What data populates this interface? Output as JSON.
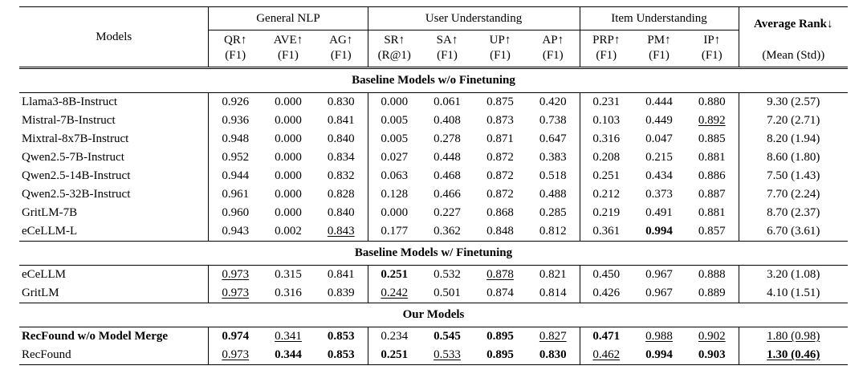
{
  "table": {
    "header": {
      "models_label": "Models",
      "groups": [
        {
          "label": "General NLP",
          "metrics": [
            {
              "name": "QR↑",
              "sub": "(F1)"
            },
            {
              "name": "AVE↑",
              "sub": "(F1)"
            },
            {
              "name": "AG↑",
              "sub": "(F1)"
            }
          ]
        },
        {
          "label": "User Understanding",
          "metrics": [
            {
              "name": "SR↑",
              "sub": "(R@1)"
            },
            {
              "name": "SA↑",
              "sub": "(F1)"
            },
            {
              "name": "UP↑",
              "sub": "(F1)"
            },
            {
              "name": "AP↑",
              "sub": "(F1)"
            }
          ]
        },
        {
          "label": "Item Understanding",
          "metrics": [
            {
              "name": "PRP↑",
              "sub": "(F1)"
            },
            {
              "name": "PM↑",
              "sub": "(F1)"
            },
            {
              "name": "IP↑",
              "sub": "(F1)"
            }
          ]
        }
      ],
      "avg_rank": {
        "label": "Average Rank↓",
        "sub": "(Mean (Std))"
      }
    },
    "sections": [
      {
        "title": "Baseline Models w/o Finetuning",
        "rows": [
          {
            "model": "Llama3-8B-Instruct",
            "model_style": "",
            "values": [
              "0.926",
              "0.000",
              "0.830",
              "0.000",
              "0.061",
              "0.875",
              "0.420",
              "0.231",
              "0.444",
              "0.880",
              "9.30 (2.57)"
            ],
            "styles": [
              "",
              "",
              "",
              "",
              "",
              "",
              "",
              "",
              "",
              "",
              ""
            ]
          },
          {
            "model": "Mistral-7B-Instruct",
            "model_style": "",
            "values": [
              "0.936",
              "0.000",
              "0.841",
              "0.005",
              "0.408",
              "0.873",
              "0.738",
              "0.103",
              "0.449",
              "0.892",
              "7.20 (2.71)"
            ],
            "styles": [
              "",
              "",
              "",
              "",
              "",
              "",
              "",
              "",
              "",
              "u",
              ""
            ]
          },
          {
            "model": "Mixtral-8x7B-Instruct",
            "model_style": "",
            "values": [
              "0.948",
              "0.000",
              "0.840",
              "0.005",
              "0.278",
              "0.871",
              "0.647",
              "0.316",
              "0.047",
              "0.885",
              "8.20 (1.94)"
            ],
            "styles": [
              "",
              "",
              "",
              "",
              "",
              "",
              "",
              "",
              "",
              "",
              ""
            ]
          },
          {
            "model": "Qwen2.5-7B-Instruct",
            "model_style": "",
            "values": [
              "0.952",
              "0.000",
              "0.834",
              "0.027",
              "0.448",
              "0.872",
              "0.383",
              "0.208",
              "0.215",
              "0.881",
              "8.60 (1.80)"
            ],
            "styles": [
              "",
              "",
              "",
              "",
              "",
              "",
              "",
              "",
              "",
              "",
              ""
            ]
          },
          {
            "model": "Qwen2.5-14B-Instruct",
            "model_style": "",
            "values": [
              "0.944",
              "0.000",
              "0.832",
              "0.063",
              "0.468",
              "0.872",
              "0.518",
              "0.251",
              "0.434",
              "0.886",
              "7.50 (1.43)"
            ],
            "styles": [
              "",
              "",
              "",
              "",
              "",
              "",
              "",
              "",
              "",
              "",
              ""
            ]
          },
          {
            "model": "Qwen2.5-32B-Instruct",
            "model_style": "",
            "values": [
              "0.961",
              "0.000",
              "0.828",
              "0.128",
              "0.466",
              "0.872",
              "0.488",
              "0.212",
              "0.373",
              "0.887",
              "7.70 (2.24)"
            ],
            "styles": [
              "",
              "",
              "",
              "",
              "",
              "",
              "",
              "",
              "",
              "",
              ""
            ]
          },
          {
            "model": "GritLM-7B",
            "model_style": "",
            "values": [
              "0.960",
              "0.000",
              "0.840",
              "0.000",
              "0.227",
              "0.868",
              "0.285",
              "0.219",
              "0.491",
              "0.881",
              "8.70 (2.37)"
            ],
            "styles": [
              "",
              "",
              "",
              "",
              "",
              "",
              "",
              "",
              "",
              "",
              ""
            ]
          },
          {
            "model": "eCeLLM-L",
            "model_style": "",
            "values": [
              "0.943",
              "0.002",
              "0.843",
              "0.177",
              "0.362",
              "0.848",
              "0.812",
              "0.361",
              "0.994",
              "0.857",
              "6.70 (3.61)"
            ],
            "styles": [
              "",
              "",
              "u",
              "",
              "",
              "",
              "",
              "",
              "b",
              "",
              ""
            ]
          }
        ]
      },
      {
        "title": "Baseline Models w/ Finetuning",
        "rows": [
          {
            "model": "eCeLLM",
            "model_style": "",
            "values": [
              "0.973",
              "0.315",
              "0.841",
              "0.251",
              "0.532",
              "0.878",
              "0.821",
              "0.450",
              "0.967",
              "0.888",
              "3.20 (1.08)"
            ],
            "styles": [
              "u",
              "",
              "",
              "b",
              "",
              "u",
              "",
              "",
              "",
              "",
              ""
            ]
          },
          {
            "model": "GritLM",
            "model_style": "",
            "values": [
              "0.973",
              "0.316",
              "0.839",
              "0.242",
              "0.501",
              "0.874",
              "0.814",
              "0.426",
              "0.967",
              "0.889",
              "4.10 (1.51)"
            ],
            "styles": [
              "u",
              "",
              "",
              "u",
              "",
              "",
              "",
              "",
              "",
              "",
              ""
            ]
          }
        ]
      },
      {
        "title": "Our Models",
        "rows": [
          {
            "model": "RecFound w/o Model Merge",
            "model_style": "b",
            "values": [
              "0.974",
              "0.341",
              "0.853",
              "0.234",
              "0.545",
              "0.895",
              "0.827",
              "0.471",
              "0.988",
              "0.902",
              "1.80 (0.98)"
            ],
            "styles": [
              "b",
              "u",
              "b",
              "",
              "b",
              "b",
              "u",
              "b",
              "u",
              "u",
              "u"
            ]
          },
          {
            "model": "RecFound",
            "model_style": "",
            "values": [
              "0.973",
              "0.344",
              "0.853",
              "0.251",
              "0.533",
              "0.895",
              "0.830",
              "0.462",
              "0.994",
              "0.903",
              "1.30 (0.46)"
            ],
            "styles": [
              "u",
              "b",
              "b",
              "b",
              "u",
              "b",
              "b",
              "u",
              "b",
              "b",
              "bu"
            ]
          }
        ]
      }
    ]
  }
}
